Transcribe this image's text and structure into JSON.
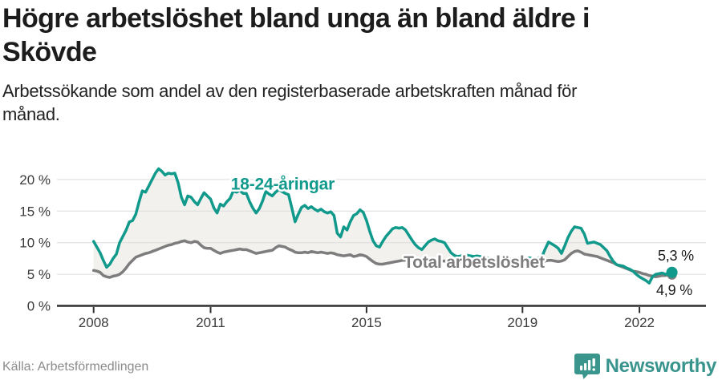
{
  "header": {
    "title_line1": "Högre arbetslöshet bland unga än bland äldre i",
    "title_line2": "Skövde",
    "subtitle_line1": "Arbetssökande som andel av den registerbaserade arbetskraften månad för",
    "subtitle_line2": "månad."
  },
  "footer": {
    "source": "Källa: Arbetsförmedlingen",
    "brand": "Newsworthy",
    "brand_icon": "bar-chart-speech-bubble-icon",
    "brand_color": "#38948c"
  },
  "chart_data": {
    "type": "line",
    "unit": "%",
    "x_start_year": 2008,
    "x_start_month": 1,
    "frequency": "monthly",
    "grid": true,
    "legend_position": "inline-labels",
    "x_axis": {
      "tick_years": [
        2008,
        2011,
        2015,
        2019,
        2022
      ],
      "tick_labels": [
        "2008",
        "2011",
        "2015",
        "2019",
        "2022"
      ]
    },
    "y_axis": {
      "ticks": [
        0,
        5,
        10,
        15,
        20
      ],
      "tick_labels": [
        "0 %",
        "5 %",
        "10 %",
        "15 %",
        "20 %"
      ],
      "range": [
        0,
        23
      ]
    },
    "area_fill_between": true,
    "area_color": "#f2f1ee",
    "grid_color": "#dcdcdc",
    "axis_color": "#2e2e2e",
    "end_dot": true,
    "series": [
      {
        "name": "18-24-åringar",
        "color": "#119a8c",
        "end_value_label": "5,3 %",
        "values": [
          10.2,
          9.3,
          8.4,
          7.2,
          6.1,
          6.6,
          7.5,
          8.2,
          10.0,
          11.0,
          12.0,
          13.3,
          13.5,
          14.5,
          16.5,
          18.2,
          18.0,
          19.0,
          20.0,
          21.0,
          21.7,
          21.3,
          20.7,
          21.0,
          20.9,
          21.0,
          19.5,
          17.2,
          16.0,
          17.4,
          17.2,
          16.5,
          16.0,
          17.0,
          17.9,
          17.4,
          16.9,
          15.5,
          14.7,
          16.1,
          15.8,
          16.5,
          17.0,
          18.2,
          18.0,
          18.3,
          17.8,
          17.8,
          16.5,
          15.5,
          14.7,
          15.4,
          16.6,
          18.1,
          17.7,
          17.4,
          18.0,
          18.4,
          18.1,
          17.8,
          17.6,
          15.5,
          13.3,
          14.5,
          15.6,
          15.9,
          15.4,
          15.7,
          15.3,
          15.0,
          15.3,
          14.9,
          14.7,
          14.9,
          14.3,
          11.5,
          10.9,
          12.5,
          12.0,
          13.3,
          14.3,
          14.6,
          15.2,
          14.8,
          13.5,
          11.8,
          10.3,
          9.5,
          9.3,
          10.2,
          11.0,
          11.6,
          12.2,
          12.4,
          12.3,
          12.4,
          12.0,
          11.2,
          10.4,
          9.7,
          9.2,
          8.9,
          9.5,
          10.1,
          10.4,
          10.6,
          10.3,
          10.2,
          10.0,
          9.2,
          8.4,
          8.0,
          7.8,
          7.9,
          8.1,
          8.0,
          7.9,
          7.8,
          7.9,
          7.8,
          7.7,
          7.6,
          7.5,
          7.4,
          7.3,
          7.4,
          7.6,
          7.5,
          7.4,
          7.3,
          7.4,
          7.5,
          7.4,
          7.5,
          7.6,
          7.5,
          7.4,
          7.6,
          7.8,
          9.0,
          10.1,
          9.8,
          9.5,
          9.1,
          8.3,
          9.5,
          10.8,
          11.8,
          12.5,
          12.4,
          12.3,
          11.4,
          9.9,
          10.0,
          10.1,
          9.9,
          9.7,
          9.2,
          8.7,
          7.8,
          7.0,
          6.5,
          6.4,
          6.3,
          6.0,
          5.8,
          5.5,
          5.0,
          4.6,
          4.3,
          4.0,
          3.6,
          4.6,
          5.0,
          5.1,
          5.2,
          5.0,
          5.2,
          5.3
        ]
      },
      {
        "name": "Total arbetslöshet",
        "color": "#7d7d7d",
        "end_value_label": "4,9 %",
        "values": [
          5.6,
          5.5,
          5.3,
          4.8,
          4.6,
          4.5,
          4.7,
          4.8,
          5.0,
          5.4,
          6.0,
          6.7,
          7.2,
          7.7,
          7.9,
          8.1,
          8.3,
          8.4,
          8.6,
          8.8,
          9.0,
          9.2,
          9.4,
          9.6,
          9.7,
          9.9,
          10.0,
          10.2,
          10.3,
          10.1,
          10.0,
          10.2,
          10.1,
          9.6,
          9.2,
          9.1,
          9.1,
          8.8,
          8.5,
          8.3,
          8.5,
          8.6,
          8.7,
          8.8,
          8.9,
          9.0,
          8.9,
          8.9,
          8.7,
          8.5,
          8.3,
          8.4,
          8.5,
          8.6,
          8.7,
          8.8,
          9.2,
          9.5,
          9.4,
          9.3,
          9.0,
          8.8,
          8.5,
          8.4,
          8.4,
          8.5,
          8.4,
          8.6,
          8.5,
          8.4,
          8.5,
          8.4,
          8.3,
          8.4,
          8.3,
          8.1,
          8.0,
          7.9,
          8.0,
          8.1,
          7.8,
          7.9,
          8.1,
          8.0,
          7.8,
          7.4,
          7.0,
          6.7,
          6.6,
          6.6,
          6.7,
          6.8,
          6.9,
          7.0,
          7.1,
          7.2,
          7.2,
          7.1,
          7.1,
          7.0,
          7.0,
          7.0,
          7.1,
          7.1,
          7.2,
          7.2,
          7.1,
          7.1,
          7.1,
          7.0,
          7.0,
          6.9,
          6.9,
          6.9,
          7.0,
          7.0,
          7.0,
          7.0,
          6.9,
          6.9,
          6.9,
          6.9,
          6.8,
          6.8,
          6.8,
          6.9,
          6.9,
          6.9,
          6.8,
          6.8,
          6.8,
          6.9,
          6.9,
          6.9,
          7.0,
          7.0,
          7.0,
          7.0,
          7.0,
          7.1,
          7.2,
          7.2,
          7.1,
          7.0,
          7.1,
          7.3,
          7.8,
          8.3,
          8.6,
          8.7,
          8.5,
          8.2,
          8.1,
          8.0,
          7.9,
          7.8,
          7.6,
          7.4,
          7.2,
          7.0,
          6.8,
          6.5,
          6.3,
          6.1,
          5.9,
          5.7,
          5.5,
          5.4,
          5.3,
          5.1,
          5.0,
          4.8,
          4.7,
          4.6,
          4.7,
          4.8,
          4.8,
          4.9,
          4.9
        ]
      }
    ],
    "annotations": [
      {
        "id": "series-label-young",
        "text": "18-24-åringar",
        "color": "#119a8c",
        "x": 2011.52,
        "y": 18.4,
        "size": 21,
        "bold": true
      },
      {
        "id": "series-label-total",
        "text": "Total arbetslöshet",
        "color": "#7d7d7d",
        "x": 2015.95,
        "y": 6.05,
        "size": 21,
        "bold": true
      },
      {
        "id": "end-label-young",
        "text": "5,3 %",
        "color": "#1a1a1a",
        "x": 2022.47,
        "y": 7.2,
        "size": 18,
        "bold": false
      },
      {
        "id": "end-label-total",
        "text": "4,9 %",
        "color": "#1a1a1a",
        "x": 2022.43,
        "y": 1.7,
        "size": 18,
        "bold": false
      }
    ]
  }
}
